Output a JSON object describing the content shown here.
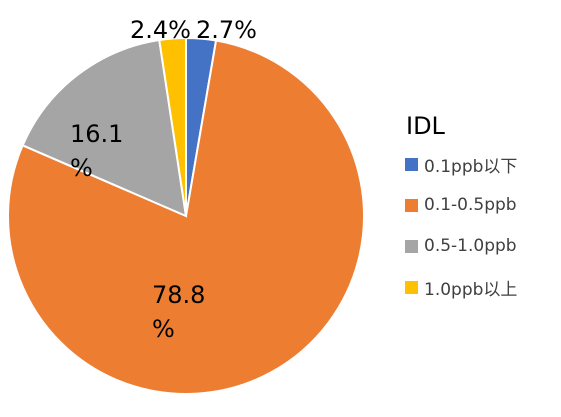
{
  "chart_data": {
    "type": "pie",
    "title": "",
    "legend_title": "IDL",
    "legend_position": "right",
    "start_angle_deg": 0,
    "direction": "clockwise",
    "slices": [
      {
        "label": "0.1ppb以下",
        "value": 2.7,
        "display": "2.7%",
        "color": "#4472C4"
      },
      {
        "label": "0.1-0.5ppb",
        "value": 78.8,
        "display": "78.8\n%",
        "color": "#ED7D31"
      },
      {
        "label": "0.5-1.0ppb",
        "value": 16.1,
        "display": "16.1\n%",
        "color": "#A5A5A5"
      },
      {
        "label": "1.0ppb以上",
        "value": 2.4,
        "display": "2.4%",
        "color": "#FFC000"
      }
    ]
  }
}
